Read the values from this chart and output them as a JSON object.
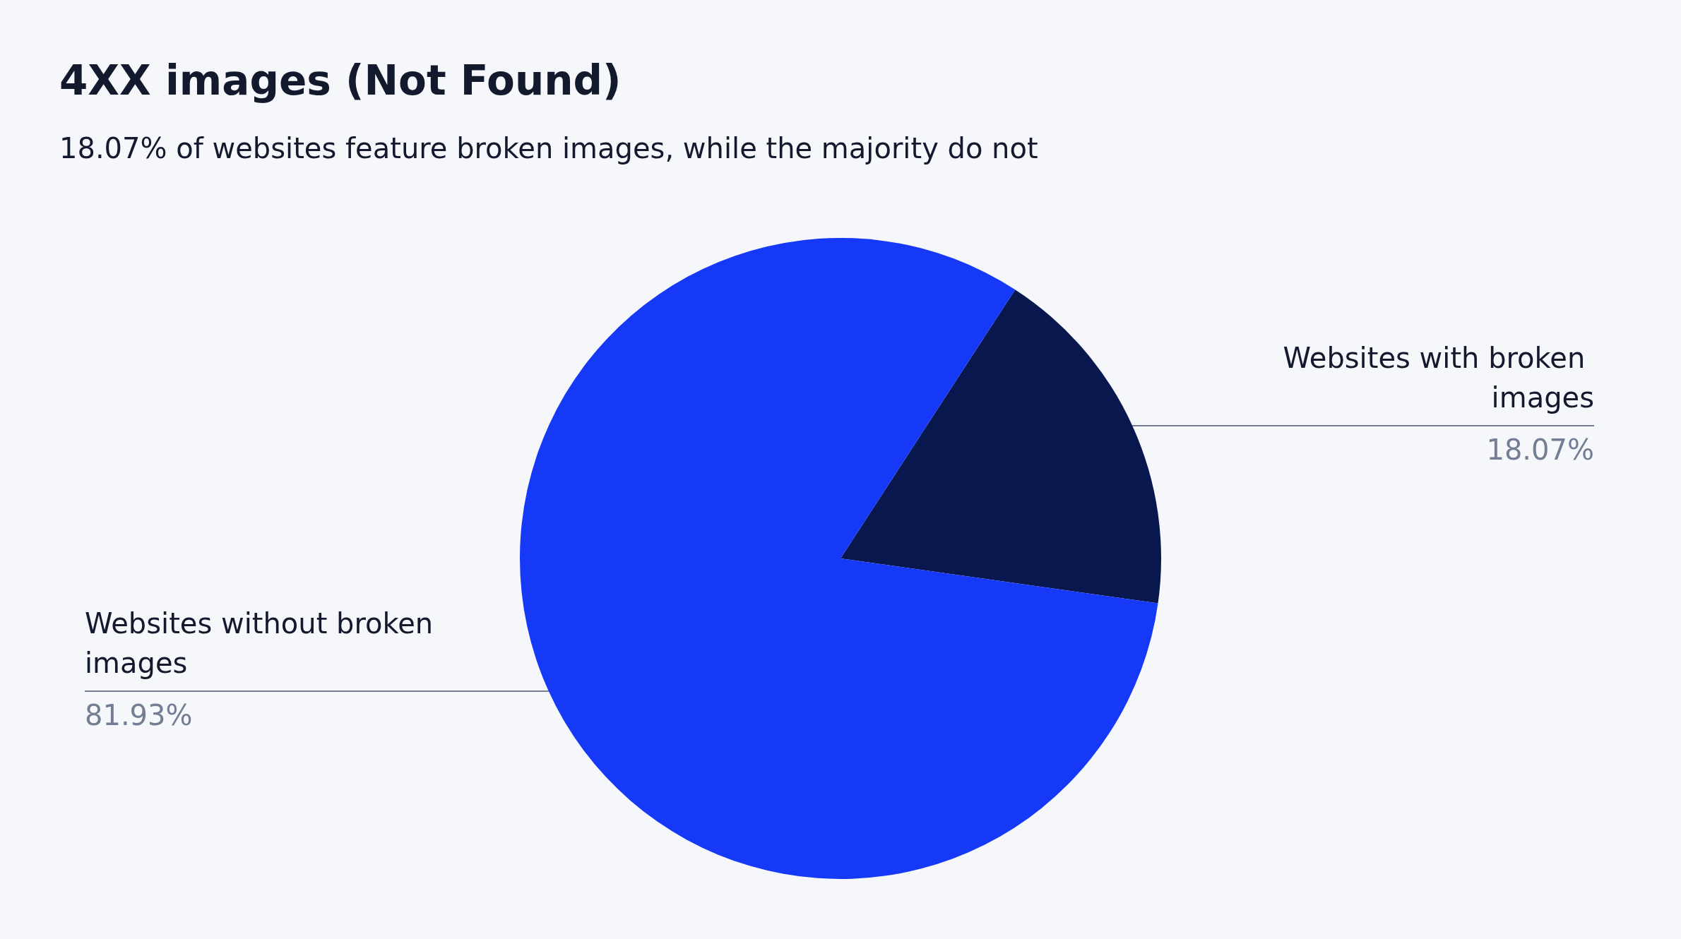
{
  "chart_data": {
    "type": "pie",
    "title": "4XX images (Not Found)",
    "subtitle": "18.07% of websites feature broken images, while the majority do not",
    "categories": [
      "Websites with broken images",
      "Websites without broken images"
    ],
    "values": [
      18.07,
      81.93
    ],
    "value_labels": [
      "18.07%",
      "81.93%"
    ],
    "colors": [
      "#08174d",
      "#1639f7"
    ],
    "legend": false
  }
}
